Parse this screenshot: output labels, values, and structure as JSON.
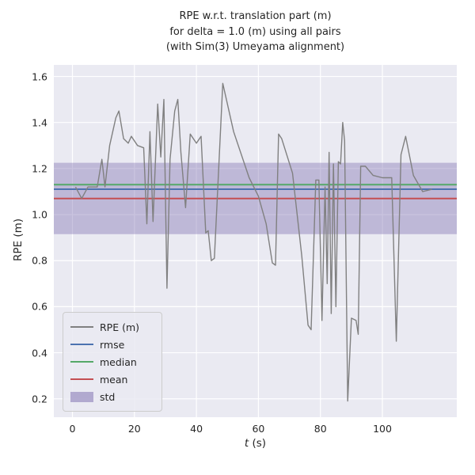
{
  "figure": {
    "title": "RPE w.r.t. translation part (m)\nfor delta = 1.0 (m) using all pairs\n(with Sim(3) Umeyama alignment)",
    "xlabel_var": "t",
    "xlabel_unit": " (s)",
    "ylabel": "RPE (m)"
  },
  "colors": {
    "plot_background": "#EAEAF2",
    "grid": "#FFFFFF",
    "text": "#262626",
    "rpe_line": "#808080",
    "rmse": "#4C72B0",
    "median": "#55A868",
    "mean": "#C44E52",
    "std_band": "#8172B2"
  },
  "chart_data": {
    "type": "line",
    "title": "RPE w.r.t. translation part (m) for delta = 1.0 (m) using all pairs (with Sim(3) Umeyama alignment)",
    "xlabel": "t (s)",
    "ylabel": "RPE (m)",
    "xlim": [
      -6,
      124
    ],
    "ylim": [
      0.12,
      1.65
    ],
    "grid": true,
    "legend_position": "lower left",
    "x_ticks": [
      0,
      20,
      40,
      60,
      80,
      100
    ],
    "x_tick_labels": [
      "0",
      "20",
      "40",
      "60",
      "80",
      "100"
    ],
    "y_ticks": [
      0.2,
      0.4,
      0.6,
      0.8,
      1.0,
      1.2,
      1.4,
      1.6
    ],
    "y_tick_labels": [
      "0.2",
      "0.4",
      "0.6",
      "0.8",
      "1.0",
      "1.2",
      "1.4",
      "1.6"
    ],
    "series": [
      {
        "name": "RPE (m)",
        "kind": "line",
        "color": "#808080",
        "points": [
          [
            1,
            1.12
          ],
          [
            3,
            1.07
          ],
          [
            5,
            1.12
          ],
          [
            8,
            1.12
          ],
          [
            9.5,
            1.24
          ],
          [
            10.5,
            1.12
          ],
          [
            12,
            1.3
          ],
          [
            14,
            1.42
          ],
          [
            15,
            1.45
          ],
          [
            16.5,
            1.33
          ],
          [
            18,
            1.31
          ],
          [
            19,
            1.34
          ],
          [
            21,
            1.3
          ],
          [
            23,
            1.29
          ],
          [
            24,
            0.96
          ],
          [
            25,
            1.36
          ],
          [
            26,
            0.97
          ],
          [
            27.5,
            1.48
          ],
          [
            28.5,
            1.25
          ],
          [
            29.5,
            1.5
          ],
          [
            30.5,
            0.68
          ],
          [
            31.5,
            1.24
          ],
          [
            33,
            1.45
          ],
          [
            34,
            1.5
          ],
          [
            35,
            1.27
          ],
          [
            36.5,
            1.03
          ],
          [
            38,
            1.35
          ],
          [
            40,
            1.31
          ],
          [
            41.5,
            1.34
          ],
          [
            43,
            0.92
          ],
          [
            43.8,
            0.93
          ],
          [
            44.8,
            0.8
          ],
          [
            45.8,
            0.81
          ],
          [
            48.5,
            1.57
          ],
          [
            52,
            1.36
          ],
          [
            57,
            1.16
          ],
          [
            60,
            1.08
          ],
          [
            62.5,
            0.96
          ],
          [
            64.5,
            0.79
          ],
          [
            65.5,
            0.78
          ],
          [
            66.5,
            1.35
          ],
          [
            67.5,
            1.33
          ],
          [
            71,
            1.18
          ],
          [
            74,
            0.82
          ],
          [
            76,
            0.52
          ],
          [
            77,
            0.5
          ],
          [
            78.5,
            1.15
          ],
          [
            79.5,
            1.15
          ],
          [
            80.5,
            0.54
          ],
          [
            81.5,
            1.12
          ],
          [
            82.2,
            0.7
          ],
          [
            82.8,
            1.27
          ],
          [
            83.5,
            0.57
          ],
          [
            84.2,
            1.22
          ],
          [
            85,
            0.6
          ],
          [
            85.8,
            1.23
          ],
          [
            86.5,
            1.22
          ],
          [
            87.2,
            1.4
          ],
          [
            87.8,
            1.32
          ],
          [
            88.8,
            0.19
          ],
          [
            90,
            0.55
          ],
          [
            91.5,
            0.54
          ],
          [
            92.2,
            0.48
          ],
          [
            93,
            1.21
          ],
          [
            94.5,
            1.21
          ],
          [
            97,
            1.17
          ],
          [
            100,
            1.16
          ],
          [
            103,
            1.16
          ],
          [
            104.5,
            0.45
          ],
          [
            106,
            1.26
          ],
          [
            107.5,
            1.34
          ],
          [
            110,
            1.17
          ],
          [
            113,
            1.1
          ],
          [
            116,
            1.11
          ]
        ]
      },
      {
        "name": "rmse",
        "kind": "hline",
        "color": "#4C72B0",
        "value": 1.11
      },
      {
        "name": "median",
        "kind": "hline",
        "color": "#55A868",
        "value": 1.13
      },
      {
        "name": "mean",
        "kind": "hline",
        "color": "#C44E52",
        "value": 1.07
      },
      {
        "name": "std",
        "kind": "band",
        "color": "#8172B2",
        "opacity": 0.42,
        "from": 0.915,
        "to": 1.225
      }
    ],
    "legend": [
      {
        "label": "RPE (m)",
        "swatch": "line",
        "color": "#808080"
      },
      {
        "label": "rmse",
        "swatch": "line",
        "color": "#4C72B0"
      },
      {
        "label": "median",
        "swatch": "line",
        "color": "#55A868"
      },
      {
        "label": "mean",
        "swatch": "line",
        "color": "#C44E52"
      },
      {
        "label": "std",
        "swatch": "band",
        "color": "#8172B2"
      }
    ]
  }
}
